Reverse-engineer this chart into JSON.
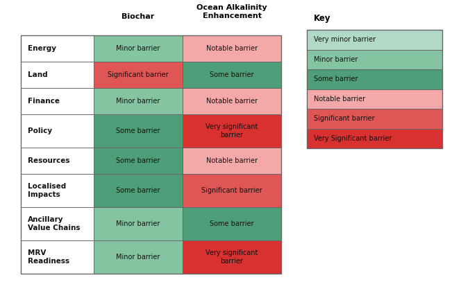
{
  "rows": [
    "Energy",
    "Land",
    "Finance",
    "Policy",
    "Resources",
    "Localised\nImpacts",
    "Ancillary\nValue Chains",
    "MRV\nReadiness"
  ],
  "col_headers": [
    "Biochar",
    "Ocean Alkalinity\nEnhancement"
  ],
  "biochar_labels": [
    "Minor barrier",
    "Significant barrier",
    "Minor barrier",
    "Some barrier",
    "Some barrier",
    "Some barrier",
    "Minor barrier",
    "Minor barrier"
  ],
  "oae_labels": [
    "Notable barrier",
    "Some barrier",
    "Notable barrier",
    "Very significant\nbarrier",
    "Notable barrier",
    "Significant barrier",
    "Some barrier",
    "Very significant\nbarrier"
  ],
  "biochar_colors": [
    "#85c4a0",
    "#e05555",
    "#85c4a0",
    "#4e9e78",
    "#4e9e78",
    "#4e9e78",
    "#85c4a0",
    "#85c4a0"
  ],
  "oae_colors": [
    "#f5a8a8",
    "#4e9e78",
    "#f5a8a8",
    "#d93030",
    "#f5a8a8",
    "#e05555",
    "#4e9e78",
    "#d93030"
  ],
  "key_labels": [
    "Very minor barrier",
    "Minor barrier",
    "Some barrier",
    "Notable barrier",
    "Significant barrier",
    "Very Significant barrier"
  ],
  "key_colors": [
    "#b0d9c8",
    "#85c4a0",
    "#4e9e78",
    "#f5a8a8",
    "#e05555",
    "#d93030"
  ],
  "background_color": "#ffffff",
  "border_color": "#666666",
  "text_color": "#111111",
  "title_color": "#000000",
  "fig_width": 6.64,
  "fig_height": 4.07,
  "dpi": 100
}
